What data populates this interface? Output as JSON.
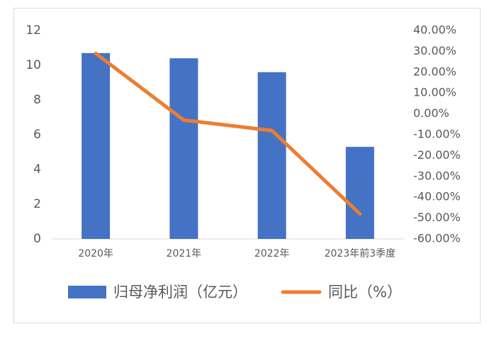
{
  "chart_data": {
    "type": "bar",
    "categories": [
      "2020年",
      "2021年",
      "2022年",
      "2023年前3季度"
    ],
    "series": [
      {
        "name": "归母净利润（亿元）",
        "type": "bar",
        "color": "#4472c4",
        "values": [
          10.7,
          10.4,
          9.6,
          5.3
        ]
      },
      {
        "name": "同比（%）",
        "type": "line",
        "axis": "y2",
        "color": "#ed7d31",
        "values": [
          29,
          -3,
          -8,
          -48
        ]
      }
    ],
    "ylim": [
      0,
      12
    ],
    "yticks": [
      0,
      2,
      4,
      6,
      8,
      10,
      12
    ],
    "y2lim": [
      -60,
      40
    ],
    "y2ticks": [
      {
        "value": 40,
        "label": "40.00%"
      },
      {
        "value": 30,
        "label": "30.00%"
      },
      {
        "value": 20,
        "label": "20.00%"
      },
      {
        "value": 10,
        "label": "10.00%"
      },
      {
        "value": 0,
        "label": "0.00%"
      },
      {
        "value": -10,
        "label": "-10.00%"
      },
      {
        "value": -20,
        "label": "-20.00%"
      },
      {
        "value": -30,
        "label": "-30.00%"
      },
      {
        "value": -40,
        "label": "-40.00%"
      },
      {
        "value": -50,
        "label": "-50.00%"
      },
      {
        "value": -60,
        "label": "-60.00%"
      }
    ],
    "grid": false,
    "legend": "bottom"
  }
}
